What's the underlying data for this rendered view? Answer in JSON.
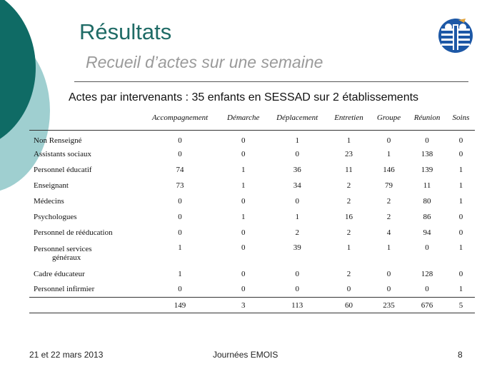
{
  "slide": {
    "title": "Résultats",
    "subtitle": "Recueil d’actes sur une semaine",
    "table_caption": "Actes par intervenants : 35 enfants en SESSAD sur 2 établissements"
  },
  "table": {
    "headers": [
      "Accompagnement",
      "Démarche",
      "Déplacement",
      "Entretien",
      "Groupe",
      "Réunion",
      "Soins"
    ],
    "rows": [
      {
        "label": "Non Renseigné",
        "values": [
          "0",
          "0",
          "1",
          "1",
          "0",
          "0",
          "0"
        ]
      },
      {
        "label": "Assistants sociaux",
        "values": [
          "0",
          "0",
          "0",
          "23",
          "1",
          "138",
          "0"
        ]
      },
      {
        "label": "Personnel éducatif",
        "values": [
          "74",
          "1",
          "36",
          "11",
          "146",
          "139",
          "1"
        ]
      },
      {
        "label": "Enseignant",
        "values": [
          "73",
          "1",
          "34",
          "2",
          "79",
          "11",
          "1"
        ]
      },
      {
        "label": "Médecins",
        "values": [
          "0",
          "0",
          "0",
          "2",
          "2",
          "80",
          "1"
        ]
      },
      {
        "label": "Psychologues",
        "values": [
          "0",
          "1",
          "1",
          "16",
          "2",
          "86",
          "0"
        ]
      },
      {
        "label": "Personnel de rééducation",
        "values": [
          "0",
          "0",
          "2",
          "2",
          "4",
          "94",
          "0"
        ]
      },
      {
        "label": "Personnel services",
        "label2": "généraux",
        "values": [
          "1",
          "0",
          "39",
          "1",
          "1",
          "0",
          "1"
        ]
      },
      {
        "label": "Cadre éducateur",
        "values": [
          "1",
          "0",
          "0",
          "2",
          "0",
          "128",
          "0"
        ]
      },
      {
        "label": "Personnel infirmier",
        "values": [
          "0",
          "0",
          "0",
          "0",
          "0",
          "0",
          "1"
        ]
      }
    ],
    "totals": [
      "149",
      "3",
      "113",
      "60",
      "235",
      "676",
      "5"
    ]
  },
  "footer": {
    "date": "21 et 22 mars 2013",
    "event": "Journées EMOIS",
    "page": "8"
  },
  "colors": {
    "title": "#1f6b66",
    "circle_dark": "#0f6b65",
    "circle_light": "#9fcfd0",
    "logo_blue": "#1d58a6"
  }
}
